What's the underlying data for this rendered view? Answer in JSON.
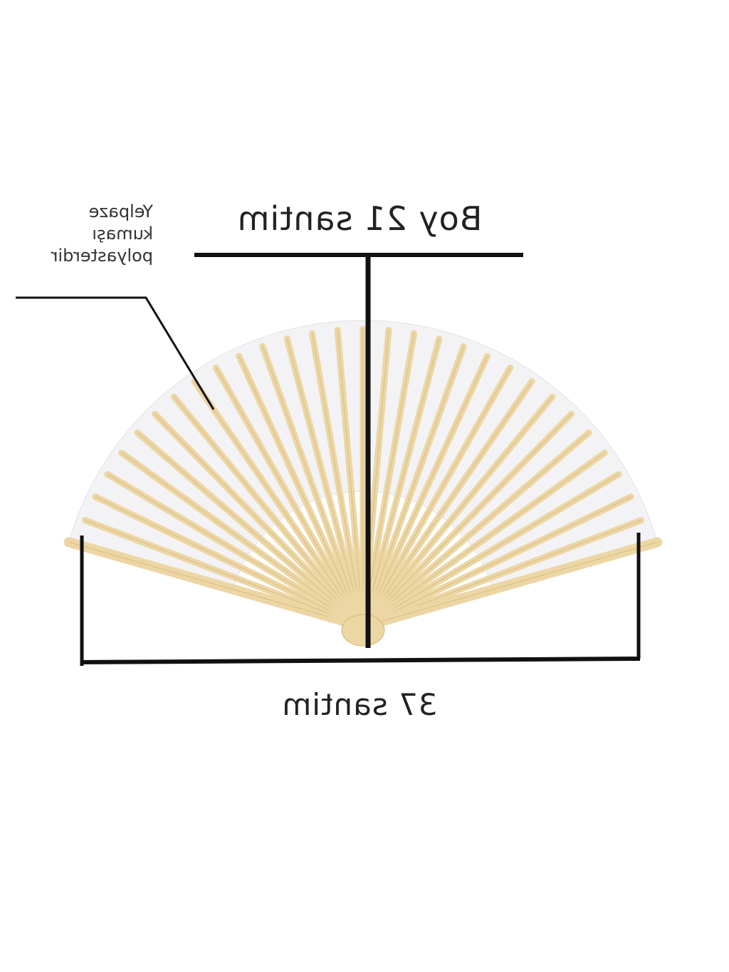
{
  "height_label": "Boy 21 santim",
  "width_label": "37 santim",
  "fabric_note": [
    "Yelpaze",
    "kumaşı",
    "polyasterdir"
  ],
  "text_mirrored": true,
  "colors": {
    "fabric": "#f3f3f5",
    "bamboo": "#ecd6a4",
    "lines": "#111111"
  }
}
